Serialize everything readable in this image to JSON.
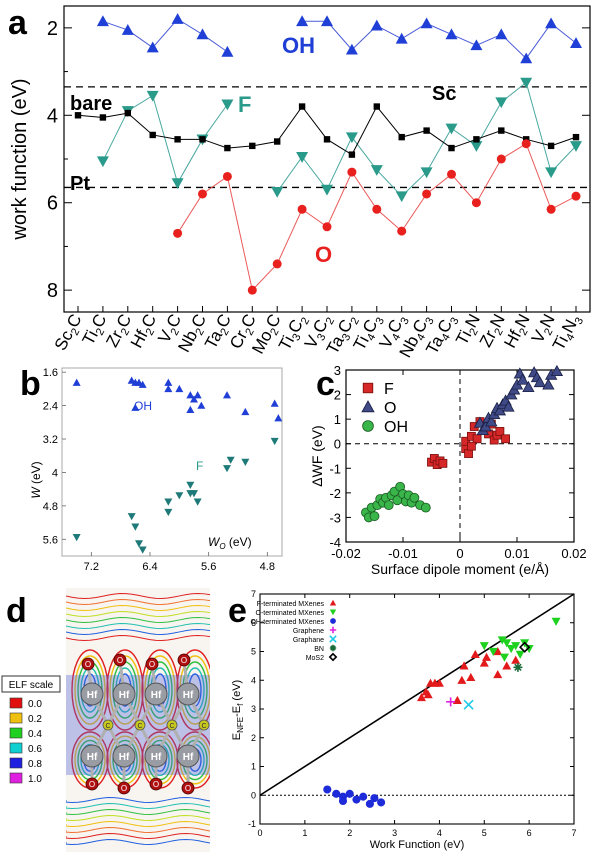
{
  "panel_labels": {
    "a": "a",
    "b": "b",
    "c": "c",
    "d": "d",
    "e": "e"
  },
  "colors": {
    "OH": "#1f3fd6",
    "F": "#2a9a8a",
    "O": "#e8201e",
    "bare": "#000000",
    "F_c": "#d62828",
    "O_c": "#3f4a86",
    "OH_c": "#39b54a"
  },
  "chart_data": [
    {
      "panel": "a",
      "type": "line",
      "ylabel": "work function (eV)",
      "ylim": [
        1.5,
        8.5
      ],
      "y_inverted": true,
      "yticks": [
        "2",
        "4",
        "6",
        "8"
      ],
      "categories": [
        "Sc2C",
        "Ti2C",
        "Zr2C",
        "Hf2C",
        "V2C",
        "Nb2C",
        "Ta2C",
        "Cr2C",
        "Mo2C",
        "Ti3C2",
        "V3C2",
        "Ta3C2",
        "Ti4C3",
        "V4C3",
        "Nb4C3",
        "Ta4C3",
        "Ti2N",
        "Zr2N",
        "Hf2N",
        "V2N",
        "Ti4N3"
      ],
      "category_labels": [
        {
          "base": "Sc",
          "s1": "2",
          "mid": "C",
          "s2": ""
        },
        {
          "base": "Ti",
          "s1": "2",
          "mid": "C",
          "s2": ""
        },
        {
          "base": "Zr",
          "s1": "2",
          "mid": "C",
          "s2": ""
        },
        {
          "base": "Hf",
          "s1": "2",
          "mid": "C",
          "s2": ""
        },
        {
          "base": "V",
          "s1": "2",
          "mid": "C",
          "s2": ""
        },
        {
          "base": "Nb",
          "s1": "2",
          "mid": "C",
          "s2": ""
        },
        {
          "base": "Ta",
          "s1": "2",
          "mid": "C",
          "s2": ""
        },
        {
          "base": "Cr",
          "s1": "2",
          "mid": "C",
          "s2": ""
        },
        {
          "base": "Mo",
          "s1": "2",
          "mid": "C",
          "s2": ""
        },
        {
          "base": "Ti",
          "s1": "3",
          "mid": "C",
          "s2": "2"
        },
        {
          "base": "V",
          "s1": "3",
          "mid": "C",
          "s2": "2"
        },
        {
          "base": "Ta",
          "s1": "3",
          "mid": "C",
          "s2": "2"
        },
        {
          "base": "Ti",
          "s1": "4",
          "mid": "C",
          "s2": "3"
        },
        {
          "base": "V",
          "s1": "4",
          "mid": "C",
          "s2": "3"
        },
        {
          "base": "Nb",
          "s1": "4",
          "mid": "C",
          "s2": "3"
        },
        {
          "base": "Ta",
          "s1": "4",
          "mid": "C",
          "s2": "3"
        },
        {
          "base": "Ti",
          "s1": "2",
          "mid": "N",
          "s2": ""
        },
        {
          "base": "Zr",
          "s1": "2",
          "mid": "N",
          "s2": ""
        },
        {
          "base": "Hf",
          "s1": "2",
          "mid": "N",
          "s2": ""
        },
        {
          "base": "V",
          "s1": "2",
          "mid": "N",
          "s2": ""
        },
        {
          "base": "Ti",
          "s1": "4",
          "mid": "N",
          "s2": "3"
        }
      ],
      "series": [
        {
          "name": "OH",
          "marker": "triangle",
          "values": [
            null,
            1.85,
            2.05,
            2.45,
            1.8,
            2.15,
            2.55,
            null,
            null,
            1.85,
            1.85,
            2.5,
            1.95,
            2.25,
            1.9,
            2.15,
            2.4,
            2.15,
            2.7,
            1.9,
            2.35
          ]
        },
        {
          "name": "F",
          "marker": "triangle-down",
          "values": [
            null,
            5.05,
            3.9,
            3.55,
            5.55,
            4.55,
            3.75,
            null,
            5.75,
            4.95,
            5.7,
            4.5,
            5.25,
            5.85,
            5.3,
            4.3,
            4.7,
            3.7,
            3.25,
            5.3,
            4.7
          ]
        },
        {
          "name": "bare",
          "marker": "square",
          "values": [
            4.0,
            4.05,
            3.95,
            4.45,
            4.55,
            4.55,
            4.75,
            4.7,
            4.6,
            3.8,
            4.55,
            4.9,
            3.8,
            4.5,
            4.35,
            4.75,
            4.55,
            4.35,
            4.55,
            4.7,
            4.5
          ]
        },
        {
          "name": "O",
          "marker": "circle",
          "values": [
            null,
            null,
            null,
            null,
            6.7,
            5.8,
            5.4,
            8.0,
            7.4,
            6.15,
            6.55,
            5.3,
            6.15,
            6.65,
            5.8,
            5.35,
            6.0,
            5.0,
            4.65,
            6.15,
            5.85
          ]
        }
      ],
      "reference_lines": [
        {
          "name": "Sc",
          "value": 3.35
        },
        {
          "name": "Pt",
          "value": 5.65
        }
      ],
      "annotations": [
        {
          "text": "OH",
          "series": "OH"
        },
        {
          "text": "F",
          "series": "F"
        },
        {
          "text": "O",
          "series": "O"
        },
        {
          "text": "bare",
          "series": "bare"
        },
        {
          "text": "Sc",
          "series": "Sc"
        },
        {
          "text": "Pt",
          "series": "Pt"
        }
      ]
    },
    {
      "panel": "b",
      "type": "scatter",
      "ylabel": "W (eV)",
      "ylabel_parts": {
        "main": "W",
        "unit": " (eV)"
      },
      "xlabel": "WO (eV)",
      "xlabel_parts": {
        "main": "W",
        "sub": "O",
        "unit": " (eV)"
      },
      "xlim": [
        7.6,
        4.6
      ],
      "ylim": [
        1.5,
        6.0
      ],
      "xticks": [
        "7.2",
        "6.4",
        "5.6",
        "4.8"
      ],
      "yticks": [
        "1.6",
        "2.4",
        "3.2",
        "4",
        "4.8",
        "5.6"
      ],
      "series": [
        {
          "name": "OH",
          "marker": "triangle",
          "points": [
            [
              7.4,
              1.85
            ],
            [
              6.65,
              1.8
            ],
            [
              6.6,
              1.85
            ],
            [
              6.55,
              1.85
            ],
            [
              6.5,
              1.9
            ],
            [
              6.15,
              1.85
            ],
            [
              6.15,
              2.0
            ],
            [
              6.0,
              2.0
            ],
            [
              5.85,
              2.15
            ],
            [
              5.8,
              2.25
            ],
            [
              5.75,
              2.15
            ],
            [
              5.7,
              2.4
            ],
            [
              5.35,
              2.15
            ],
            [
              5.1,
              2.55
            ],
            [
              4.7,
              2.35
            ],
            [
              6.6,
              2.45
            ],
            [
              5.85,
              2.5
            ],
            [
              4.65,
              2.7
            ]
          ]
        },
        {
          "name": "F",
          "marker": "triangle-down",
          "points": [
            [
              7.4,
              5.55
            ],
            [
              6.65,
              5.05
            ],
            [
              6.6,
              5.3
            ],
            [
              6.55,
              5.7
            ],
            [
              6.5,
              5.85
            ],
            [
              6.15,
              4.95
            ],
            [
              6.15,
              4.7
            ],
            [
              6.0,
              4.55
            ],
            [
              5.85,
              4.3
            ],
            [
              5.8,
              4.5
            ],
            [
              5.75,
              4.7
            ],
            [
              5.35,
              3.9
            ],
            [
              5.1,
              3.75
            ],
            [
              4.7,
              3.25
            ],
            [
              5.85,
              4.5
            ],
            [
              5.3,
              3.7
            ]
          ]
        }
      ],
      "annotations": [
        {
          "text": "OH",
          "series": "OH"
        },
        {
          "text": "F",
          "series": "F"
        }
      ]
    },
    {
      "panel": "c",
      "type": "scatter",
      "ylabel": "ΔWF (eV)",
      "xlabel": "Surface dipole moment (e/Å)",
      "xlim": [
        -0.02,
        0.02
      ],
      "ylim": [
        -4,
        3
      ],
      "xticks": [
        "-0.02",
        "-0.01",
        "0",
        "0.01",
        "0.02"
      ],
      "yticks": [
        "-4",
        "-3",
        "-2",
        "-1",
        "0",
        "1",
        "2",
        "3"
      ],
      "legend": [
        "F",
        "O",
        "OH"
      ],
      "legend_position": "top-left",
      "series": [
        {
          "name": "F",
          "marker": "square",
          "points": [
            [
              -0.005,
              -0.75
            ],
            [
              -0.0045,
              -0.6
            ],
            [
              -0.004,
              -0.85
            ],
            [
              -0.0035,
              -0.7
            ],
            [
              -0.003,
              -0.8
            ],
            [
              0.001,
              -0.2
            ],
            [
              0.001,
              0.1
            ],
            [
              0.0015,
              -0.4
            ],
            [
              0.002,
              0.3
            ],
            [
              0.0025,
              0.7
            ],
            [
              0.003,
              0.2
            ],
            [
              0.0035,
              0.9
            ],
            [
              0.0045,
              0.6
            ],
            [
              0.005,
              0.4
            ],
            [
              0.0055,
              0.8
            ],
            [
              0.006,
              0.15
            ],
            [
              0.0065,
              0.35
            ],
            [
              0.007,
              0.5
            ],
            [
              0.008,
              0.2
            ],
            [
              0.002,
              -0.1
            ]
          ]
        },
        {
          "name": "O",
          "marker": "triangle",
          "points": [
            [
              0.0035,
              0.85
            ],
            [
              0.004,
              0.55
            ],
            [
              0.0045,
              0.7
            ],
            [
              0.005,
              1.05
            ],
            [
              0.0055,
              0.9
            ],
            [
              0.006,
              1.2
            ],
            [
              0.0065,
              1.45
            ],
            [
              0.007,
              1.35
            ],
            [
              0.0075,
              1.6
            ],
            [
              0.008,
              1.75
            ],
            [
              0.0085,
              1.5
            ],
            [
              0.009,
              2.0
            ],
            [
              0.0095,
              2.2
            ],
            [
              0.01,
              2.4
            ],
            [
              0.0105,
              2.85
            ],
            [
              0.011,
              2.6
            ],
            [
              0.012,
              2.3
            ],
            [
              0.013,
              2.9
            ],
            [
              0.0135,
              2.7
            ],
            [
              0.014,
              2.5
            ],
            [
              0.0155,
              2.4
            ],
            [
              0.016,
              2.8
            ],
            [
              0.017,
              2.95
            ]
          ]
        },
        {
          "name": "OH",
          "marker": "circle",
          "points": [
            [
              -0.0165,
              -2.8
            ],
            [
              -0.016,
              -3.0
            ],
            [
              -0.0155,
              -2.6
            ],
            [
              -0.015,
              -2.95
            ],
            [
              -0.0145,
              -2.5
            ],
            [
              -0.014,
              -2.25
            ],
            [
              -0.0135,
              -2.4
            ],
            [
              -0.013,
              -2.2
            ],
            [
              -0.0125,
              -2.5
            ],
            [
              -0.012,
              -2.1
            ],
            [
              -0.0115,
              -1.95
            ],
            [
              -0.011,
              -2.3
            ],
            [
              -0.0105,
              -1.75
            ],
            [
              -0.01,
              -2.05
            ],
            [
              -0.0095,
              -2.35
            ],
            [
              -0.009,
              -2.1
            ],
            [
              -0.0085,
              -2.4
            ],
            [
              -0.008,
              -2.2
            ],
            [
              -0.007,
              -2.5
            ],
            [
              -0.006,
              -2.6
            ]
          ]
        }
      ]
    },
    {
      "panel": "e",
      "type": "scatter",
      "ylabel": "ENFE-Ef (eV)",
      "ylabel_parts": {
        "main": "E",
        "sub": "NFE",
        "mid": "-E",
        "sub2": "f",
        "unit": " (eV)"
      },
      "xlabel": "Work Function (eV)",
      "xlim": [
        0,
        7
      ],
      "ylim": [
        -1,
        7
      ],
      "xticks": [
        "0",
        "1",
        "2",
        "3",
        "4",
        "5",
        "6",
        "7"
      ],
      "yticks": [
        "-1",
        "0",
        "1",
        "2",
        "3",
        "4",
        "5",
        "6",
        "7"
      ],
      "legend": [
        "F-terminated MXenes",
        "O-terminated MXenes",
        "OH-terminated MXenes",
        "Graphene",
        "Graphane",
        "BN",
        "MoS2"
      ],
      "legend_position": "top-left",
      "series": [
        {
          "name": "F-terminated MXenes",
          "marker": "triangle",
          "color": "#e31a1c",
          "points": [
            [
              3.6,
              3.4
            ],
            [
              3.7,
              3.6
            ],
            [
              3.75,
              3.5
            ],
            [
              3.8,
              3.9
            ],
            [
              3.9,
              3.9
            ],
            [
              4.0,
              3.9
            ],
            [
              4.4,
              3.3
            ],
            [
              4.5,
              4.0
            ],
            [
              4.55,
              4.5
            ],
            [
              4.7,
              4.1
            ],
            [
              4.8,
              4.9
            ],
            [
              5.0,
              4.6
            ],
            [
              5.3,
              4.2
            ],
            [
              5.5,
              4.5
            ],
            [
              5.7,
              4.7
            ],
            [
              5.3,
              5.0
            ],
            [
              5.05,
              4.8
            ]
          ]
        },
        {
          "name": "O-terminated MXenes",
          "marker": "triangle-down",
          "color": "#1fd11f",
          "points": [
            [
              5.0,
              5.2
            ],
            [
              5.2,
              5.0
            ],
            [
              5.4,
              5.4
            ],
            [
              5.5,
              5.3
            ],
            [
              5.6,
              5.1
            ],
            [
              5.8,
              4.9
            ],
            [
              5.9,
              5.3
            ],
            [
              6.0,
              5.1
            ],
            [
              6.6,
              6.05
            ],
            [
              5.7,
              5.2
            ],
            [
              5.45,
              4.8
            ]
          ]
        },
        {
          "name": "OH-terminated MXenes",
          "marker": "circle",
          "color": "#1e2bd8",
          "points": [
            [
              1.5,
              0.2
            ],
            [
              1.7,
              0.05
            ],
            [
              1.85,
              -0.05
            ],
            [
              2.0,
              0.05
            ],
            [
              2.15,
              -0.15
            ],
            [
              2.3,
              -0.05
            ],
            [
              2.45,
              -0.3
            ],
            [
              2.55,
              -0.1
            ],
            [
              2.7,
              -0.25
            ],
            [
              1.85,
              -0.2
            ]
          ]
        },
        {
          "name": "Graphene",
          "marker": "plus",
          "color": "#e020e0",
          "points": [
            [
              4.25,
              3.25
            ]
          ]
        },
        {
          "name": "Graphane",
          "marker": "x",
          "color": "#20c8e8",
          "points": [
            [
              4.65,
              3.15
            ]
          ]
        },
        {
          "name": "BN",
          "marker": "asterisk",
          "color": "#1a6b3a",
          "points": [
            [
              5.75,
              4.45
            ]
          ]
        },
        {
          "name": "MoS2",
          "marker": "diamond",
          "color": "#000000",
          "points": [
            [
              5.9,
              5.15
            ]
          ]
        }
      ],
      "reference_lines": [
        {
          "type": "y=x"
        },
        {
          "type": "y=0",
          "style": "dotted"
        }
      ]
    }
  ],
  "panel_d": {
    "legend_title": "ELF scale",
    "elf_scale": [
      {
        "label": "0.0",
        "color": "#e01010"
      },
      {
        "label": "0.2",
        "color": "#f0c010"
      },
      {
        "label": "0.4",
        "color": "#20d020"
      },
      {
        "label": "0.6",
        "color": "#10d0d0"
      },
      {
        "label": "0.8",
        "color": "#2020e0"
      },
      {
        "label": "1.0",
        "color": "#e020e0"
      }
    ],
    "atom_labels": {
      "hf": "Hf",
      "c": "C",
      "o": "O"
    }
  }
}
